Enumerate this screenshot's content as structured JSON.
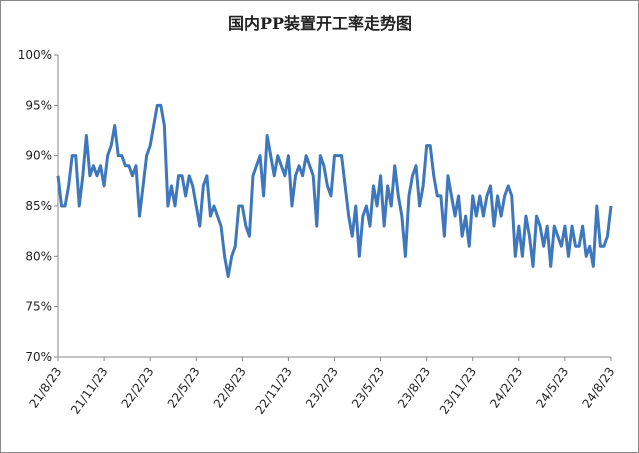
{
  "chart_data": {
    "type": "line",
    "title": "国内PP装置开工率走势图",
    "categories": [
      "21/8/23",
      null,
      null,
      null,
      null,
      null,
      null,
      null,
      null,
      null,
      null,
      null,
      null,
      "21/11/23",
      null,
      null,
      null,
      null,
      null,
      null,
      null,
      null,
      null,
      null,
      null,
      null,
      "22/2/23",
      null,
      null,
      null,
      null,
      null,
      null,
      null,
      null,
      null,
      null,
      null,
      null,
      "22/5/23",
      null,
      null,
      null,
      null,
      null,
      null,
      null,
      null,
      null,
      null,
      null,
      null,
      "22/8/23",
      null,
      null,
      null,
      null,
      null,
      null,
      null,
      null,
      null,
      null,
      null,
      null,
      "22/11/23",
      null,
      null,
      null,
      null,
      null,
      null,
      null,
      null,
      null,
      null,
      null,
      null,
      "23/2/23",
      null,
      null,
      null,
      null,
      null,
      null,
      null,
      null,
      null,
      null,
      null,
      null,
      "23/5/23",
      null,
      null,
      null,
      null,
      null,
      null,
      null,
      null,
      null,
      null,
      null,
      null,
      "23/8/23",
      null,
      null,
      null,
      null,
      null,
      null,
      null,
      null,
      null,
      null,
      null,
      null,
      "23/11/23",
      null,
      null,
      null,
      null,
      null,
      null,
      null,
      null,
      null,
      null,
      null,
      null,
      "24/2/23",
      null,
      null,
      null,
      null,
      null,
      null,
      null,
      null,
      null,
      null,
      null,
      null,
      "24/5/23",
      null,
      null,
      null,
      null,
      null,
      null,
      null,
      null,
      null,
      null,
      null,
      null,
      "24/8/23"
    ],
    "values": [
      88,
      85,
      85,
      87,
      90,
      90,
      85,
      88,
      92,
      88,
      89,
      88,
      89,
      87,
      90,
      91,
      93,
      90,
      90,
      89,
      89,
      88,
      89,
      84,
      87,
      90,
      91,
      93,
      95,
      95,
      93,
      85,
      87,
      85,
      88,
      88,
      86,
      88,
      87,
      85,
      83,
      87,
      88,
      84,
      85,
      84,
      83,
      80,
      78,
      80,
      81,
      85,
      85,
      83,
      82,
      88,
      89,
      90,
      86,
      92,
      90,
      88,
      90,
      89,
      88,
      90,
      85,
      88,
      89,
      88,
      90,
      89,
      88,
      83,
      90,
      89,
      87,
      86,
      90,
      90,
      90,
      87,
      84,
      82,
      85,
      80,
      84,
      85,
      83,
      87,
      85,
      88,
      83,
      87,
      85,
      89,
      86,
      84,
      80,
      86,
      88,
      89,
      85,
      87,
      91,
      91,
      88,
      86,
      86,
      82,
      88,
      86,
      84,
      86,
      82,
      84,
      81,
      86,
      84,
      86,
      84,
      86,
      87,
      83,
      86,
      84,
      86,
      87,
      86,
      80,
      83,
      80,
      84,
      82,
      79,
      84,
      83,
      81,
      83,
      79,
      83,
      82,
      81,
      83,
      80,
      83,
      81,
      81,
      83,
      80,
      81,
      79,
      85,
      81,
      81,
      82,
      85
    ],
    "color": "#3f77bd",
    "ylim": [
      70,
      100
    ],
    "yticks": [
      {
        "value": 70,
        "label": "70%"
      },
      {
        "value": 75,
        "label": "75%"
      },
      {
        "value": 80,
        "label": "80%"
      },
      {
        "value": 85,
        "label": "85%"
      },
      {
        "value": 90,
        "label": "90%"
      },
      {
        "value": 95,
        "label": "95%"
      },
      {
        "value": 100,
        "label": "100%"
      }
    ],
    "grid": false
  }
}
